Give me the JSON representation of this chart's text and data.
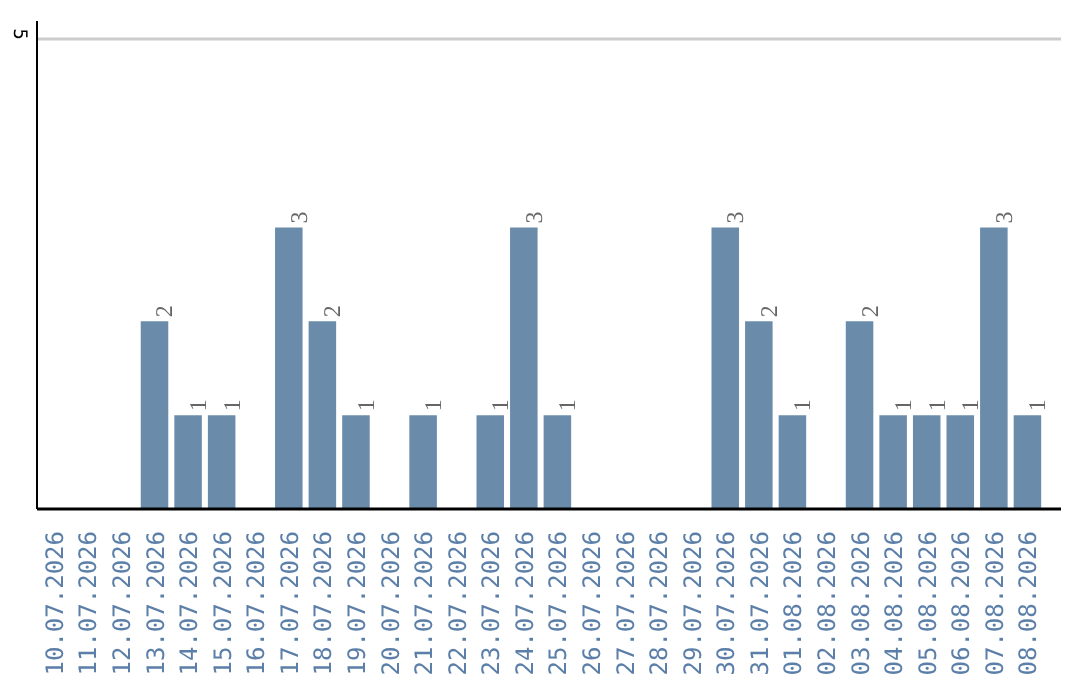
{
  "chart_data": {
    "type": "bar",
    "categories": [
      "10.07.2026",
      "11.07.2026",
      "12.07.2026",
      "13.07.2026",
      "14.07.2026",
      "15.07.2026",
      "16.07.2026",
      "17.07.2026",
      "18.07.2026",
      "19.07.2026",
      "20.07.2026",
      "21.07.2026",
      "22.07.2026",
      "23.07.2026",
      "24.07.2026",
      "25.07.2026",
      "26.07.2026",
      "27.07.2026",
      "28.07.2026",
      "29.07.2026",
      "30.07.2026",
      "31.07.2026",
      "01.08.2026",
      "02.08.2026",
      "03.08.2026",
      "04.08.2026",
      "05.08.2026",
      "06.08.2026",
      "07.08.2026",
      "08.08.2026"
    ],
    "values": [
      0,
      0,
      0,
      2,
      1,
      1,
      0,
      3,
      2,
      1,
      0,
      1,
      0,
      1,
      3,
      1,
      0,
      0,
      0,
      0,
      3,
      2,
      1,
      0,
      2,
      1,
      1,
      1,
      3,
      1
    ],
    "value_labels": [
      null,
      null,
      null,
      "2",
      "1",
      "1",
      null,
      "3",
      "2",
      "1",
      null,
      "1",
      null,
      "1",
      "3",
      "1",
      null,
      null,
      null,
      null,
      "3",
      "2",
      "1",
      null,
      "2",
      "1",
      "1",
      "1",
      "3",
      "1"
    ],
    "color": "#6a8caa",
    "ylim": [
      0,
      5.2
    ],
    "yticks": [
      5
    ],
    "grid": "y"
  }
}
